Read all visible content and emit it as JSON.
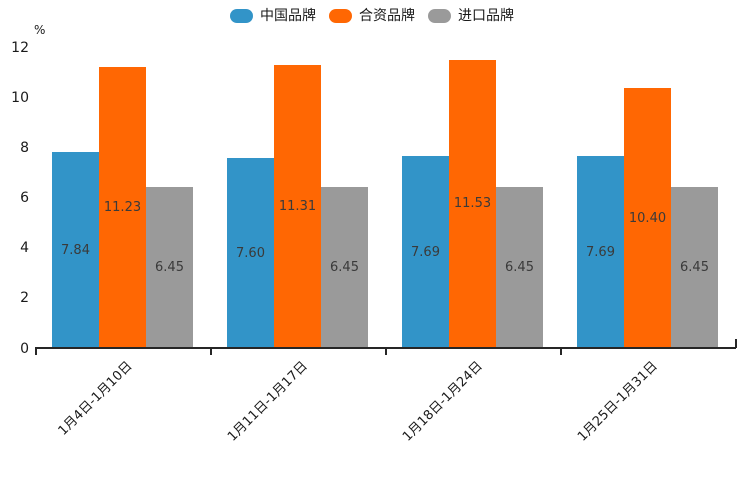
{
  "chart_data": {
    "type": "bar",
    "title": "",
    "ylabel": "%",
    "xlabel": "",
    "categories": [
      "1月4日-1月10日",
      "1月11日-1月17日",
      "1月18日-1月24日",
      "1月25日-1月31日"
    ],
    "series": [
      {
        "name": "中国品牌",
        "color": "#3294C8",
        "values": [
          7.84,
          7.6,
          7.69,
          7.69
        ]
      },
      {
        "name": "合资品牌",
        "color": "#FF6703",
        "values": [
          11.23,
          11.31,
          11.53,
          10.4
        ]
      },
      {
        "name": "进口品牌",
        "color": "#9A9A9A",
        "values": [
          6.45,
          6.45,
          6.45,
          6.45
        ]
      }
    ],
    "value_labels": [
      [
        "7.84",
        "7.60",
        "7.69",
        "7.69"
      ],
      [
        "11.23",
        "11.31",
        "11.53",
        "10.40"
      ],
      [
        "6.45",
        "6.45",
        "6.45",
        "6.45"
      ]
    ],
    "ylim": [
      0,
      12
    ],
    "yticks": [
      0,
      2,
      4,
      6,
      8,
      10,
      12
    ],
    "legend_position": "top",
    "grid": false,
    "value_label_color": "#3a3a3a",
    "axis_color": "#262626"
  }
}
